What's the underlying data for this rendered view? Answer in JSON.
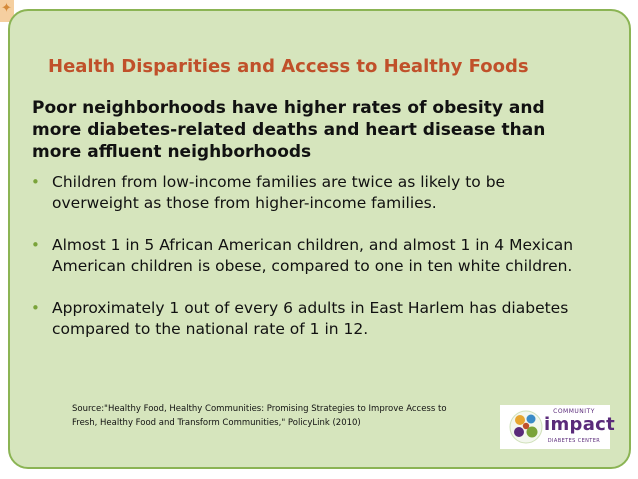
{
  "slide": {
    "title": "Health Disparities and Access to Healthy Foods",
    "lead": "Poor neighborhoods have higher rates of obesity and more diabetes-related deaths and heart disease than more affluent neighborhoods",
    "bullets": [
      "Children from low-income families are twice as likely to be overweight as those from higher-income families.",
      "Almost 1 in 5 African American children, and almost 1 in 4 Mexican American children is obese, compared to one in ten white children.",
      "Approximately 1 out of every 6 adults in East Harlem has diabetes compared to the national rate of 1 in 12."
    ],
    "source_line1": "Source:\"Healthy Food, Healthy Communities: Promising Strategies to Improve Access to",
    "source_line2": "Fresh, Healthy Food and Transform Communities,\" PolicyLink (2010)"
  },
  "logo": {
    "top_text": "COMMUNITY",
    "word": "impact",
    "bottom_text": "DIABETES CENTER"
  },
  "colors": {
    "slide_background": "#d6e5bd",
    "slide_border": "#8bb454",
    "title": "#c0502a",
    "bullet": "#7aa33a",
    "logo": "#5a2a7a"
  }
}
